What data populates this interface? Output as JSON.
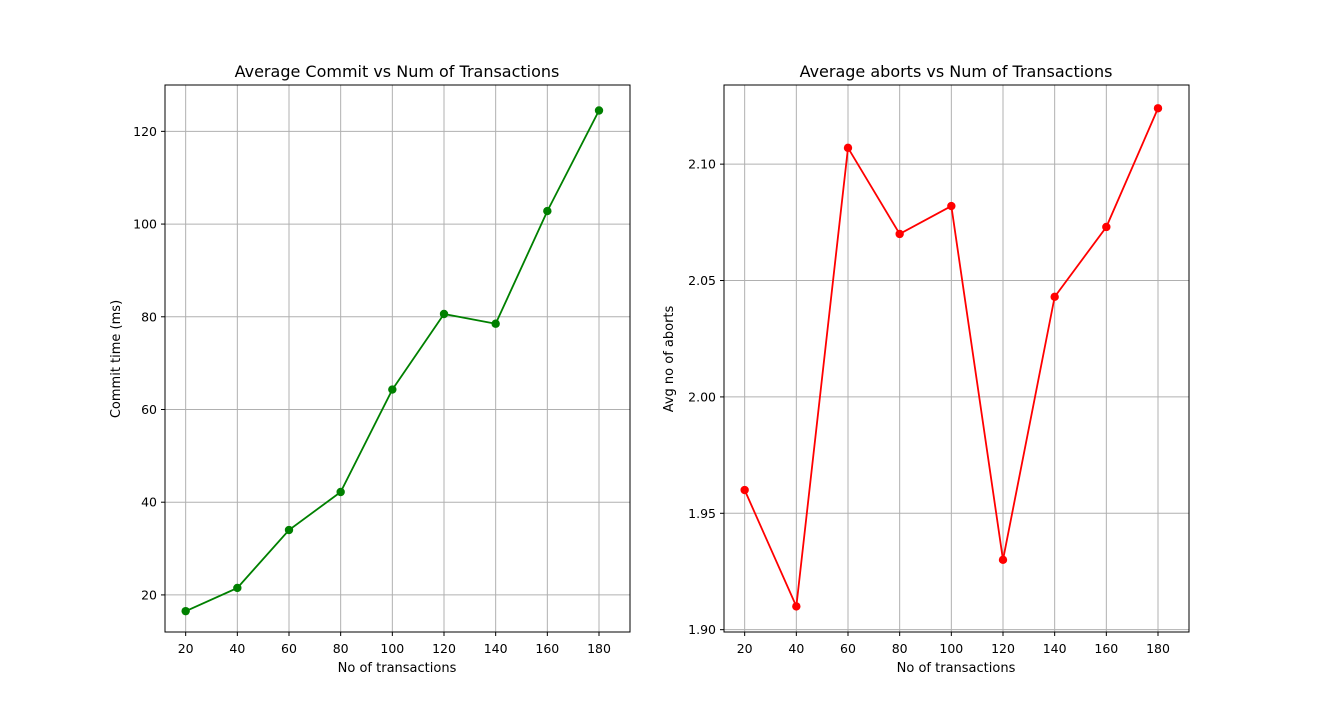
{
  "chart_data": [
    {
      "type": "line",
      "title": "Average Commit vs Num of Transactions",
      "xlabel": "No of transactions",
      "ylabel": "Commit time (ms)",
      "x": [
        20,
        40,
        60,
        80,
        100,
        120,
        140,
        160,
        180
      ],
      "xlim": [
        12,
        192
      ],
      "ylim": [
        12,
        130
      ],
      "xticks": [
        20,
        40,
        60,
        80,
        100,
        120,
        140,
        160,
        180
      ],
      "yticks": [
        20,
        40,
        60,
        80,
        100,
        120
      ],
      "ytick_labels": [
        "20",
        "40",
        "60",
        "80",
        "100",
        "120"
      ],
      "grid": true,
      "series": [
        {
          "values": [
            16.5,
            21.5,
            34,
            42.2,
            64.3,
            80.6,
            78.5,
            102.8,
            124.5
          ],
          "color": "#008000",
          "marker": "circle"
        }
      ]
    },
    {
      "type": "line",
      "title": "Average aborts vs Num of Transactions",
      "xlabel": "No of transactions",
      "ylabel": "Avg no of aborts",
      "x": [
        20,
        40,
        60,
        80,
        100,
        120,
        140,
        160,
        180
      ],
      "xlim": [
        12,
        192
      ],
      "ylim": [
        1.899,
        2.134
      ],
      "xticks": [
        20,
        40,
        60,
        80,
        100,
        120,
        140,
        160,
        180
      ],
      "yticks": [
        1.9,
        1.95,
        2.0,
        2.05,
        2.1
      ],
      "ytick_labels": [
        "1.90",
        "1.95",
        "2.00",
        "2.05",
        "2.10"
      ],
      "grid": true,
      "series": [
        {
          "values": [
            1.96,
            1.91,
            2.107,
            2.07,
            2.082,
            1.93,
            2.043,
            2.073,
            2.124
          ],
          "color": "#ff0000",
          "marker": "circle"
        }
      ]
    }
  ]
}
